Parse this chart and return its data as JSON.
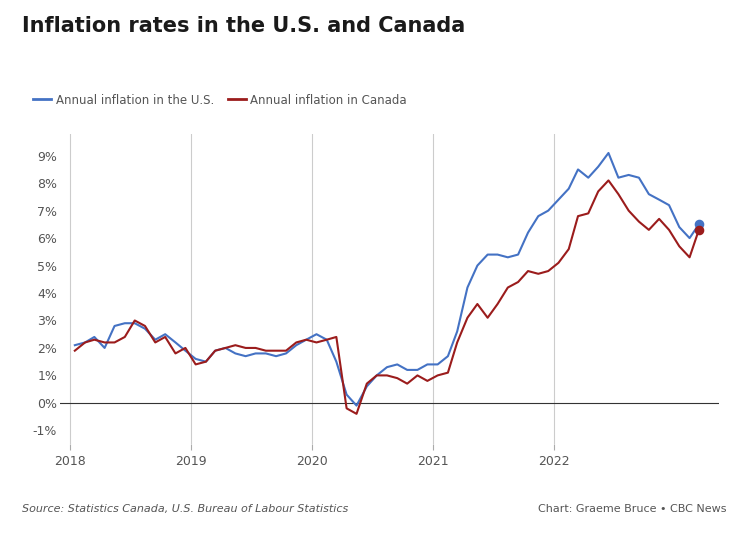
{
  "title": "Inflation rates in the U.S. and Canada",
  "legend_us": "Annual inflation in the U.S.",
  "legend_ca": "Annual inflation in Canada",
  "source_text": "Source: Statistics Canada, U.S. Bureau of Labour Statistics",
  "credit_text": "Chart: Graeme Bruce • CBC News",
  "color_us": "#4472C4",
  "color_ca": "#9B1C1C",
  "yticks": [
    -0.01,
    0.0,
    0.01,
    0.02,
    0.03,
    0.04,
    0.05,
    0.06,
    0.07,
    0.08,
    0.09
  ],
  "ytick_labels": [
    "-1%",
    "0%",
    "1%",
    "2%",
    "3%",
    "4%",
    "5%",
    "6%",
    "7%",
    "8%",
    "9%"
  ],
  "ylim": [
    -0.015,
    0.098
  ],
  "vline_years": [
    2018,
    2019,
    2020,
    2021,
    2022
  ],
  "us_data": [
    [
      2018,
      1
    ],
    [
      2018,
      2
    ],
    [
      2018,
      3
    ],
    [
      2018,
      4
    ],
    [
      2018,
      5
    ],
    [
      2018,
      6
    ],
    [
      2018,
      7
    ],
    [
      2018,
      8
    ],
    [
      2018,
      9
    ],
    [
      2018,
      10
    ],
    [
      2018,
      11
    ],
    [
      2018,
      12
    ],
    [
      2019,
      1
    ],
    [
      2019,
      2
    ],
    [
      2019,
      3
    ],
    [
      2019,
      4
    ],
    [
      2019,
      5
    ],
    [
      2019,
      6
    ],
    [
      2019,
      7
    ],
    [
      2019,
      8
    ],
    [
      2019,
      9
    ],
    [
      2019,
      10
    ],
    [
      2019,
      11
    ],
    [
      2019,
      12
    ],
    [
      2020,
      1
    ],
    [
      2020,
      2
    ],
    [
      2020,
      3
    ],
    [
      2020,
      4
    ],
    [
      2020,
      5
    ],
    [
      2020,
      6
    ],
    [
      2020,
      7
    ],
    [
      2020,
      8
    ],
    [
      2020,
      9
    ],
    [
      2020,
      10
    ],
    [
      2020,
      11
    ],
    [
      2020,
      12
    ],
    [
      2021,
      1
    ],
    [
      2021,
      2
    ],
    [
      2021,
      3
    ],
    [
      2021,
      4
    ],
    [
      2021,
      5
    ],
    [
      2021,
      6
    ],
    [
      2021,
      7
    ],
    [
      2021,
      8
    ],
    [
      2021,
      9
    ],
    [
      2021,
      10
    ],
    [
      2021,
      11
    ],
    [
      2021,
      12
    ],
    [
      2022,
      1
    ],
    [
      2022,
      2
    ],
    [
      2022,
      3
    ],
    [
      2022,
      4
    ],
    [
      2022,
      5
    ],
    [
      2022,
      6
    ],
    [
      2022,
      7
    ],
    [
      2022,
      8
    ],
    [
      2022,
      9
    ],
    [
      2022,
      10
    ],
    [
      2022,
      11
    ],
    [
      2022,
      12
    ],
    [
      2023,
      1
    ],
    [
      2023,
      2
    ],
    [
      2023,
      3
    ]
  ],
  "us_values": [
    0.021,
    0.022,
    0.024,
    0.02,
    0.028,
    0.029,
    0.029,
    0.027,
    0.023,
    0.025,
    0.022,
    0.019,
    0.016,
    0.015,
    0.019,
    0.02,
    0.018,
    0.017,
    0.018,
    0.018,
    0.017,
    0.018,
    0.021,
    0.023,
    0.025,
    0.023,
    0.015,
    0.003,
    -0.001,
    0.006,
    0.01,
    0.013,
    0.014,
    0.012,
    0.012,
    0.014,
    0.014,
    0.017,
    0.026,
    0.042,
    0.05,
    0.054,
    0.054,
    0.053,
    0.054,
    0.062,
    0.068,
    0.07,
    0.074,
    0.078,
    0.085,
    0.082,
    0.086,
    0.091,
    0.082,
    0.083,
    0.082,
    0.076,
    0.074,
    0.072,
    0.064,
    0.06,
    0.065
  ],
  "ca_data": [
    [
      2018,
      1
    ],
    [
      2018,
      2
    ],
    [
      2018,
      3
    ],
    [
      2018,
      4
    ],
    [
      2018,
      5
    ],
    [
      2018,
      6
    ],
    [
      2018,
      7
    ],
    [
      2018,
      8
    ],
    [
      2018,
      9
    ],
    [
      2018,
      10
    ],
    [
      2018,
      11
    ],
    [
      2018,
      12
    ],
    [
      2019,
      1
    ],
    [
      2019,
      2
    ],
    [
      2019,
      3
    ],
    [
      2019,
      4
    ],
    [
      2019,
      5
    ],
    [
      2019,
      6
    ],
    [
      2019,
      7
    ],
    [
      2019,
      8
    ],
    [
      2019,
      9
    ],
    [
      2019,
      10
    ],
    [
      2019,
      11
    ],
    [
      2019,
      12
    ],
    [
      2020,
      1
    ],
    [
      2020,
      2
    ],
    [
      2020,
      3
    ],
    [
      2020,
      4
    ],
    [
      2020,
      5
    ],
    [
      2020,
      6
    ],
    [
      2020,
      7
    ],
    [
      2020,
      8
    ],
    [
      2020,
      9
    ],
    [
      2020,
      10
    ],
    [
      2020,
      11
    ],
    [
      2020,
      12
    ],
    [
      2021,
      1
    ],
    [
      2021,
      2
    ],
    [
      2021,
      3
    ],
    [
      2021,
      4
    ],
    [
      2021,
      5
    ],
    [
      2021,
      6
    ],
    [
      2021,
      7
    ],
    [
      2021,
      8
    ],
    [
      2021,
      9
    ],
    [
      2021,
      10
    ],
    [
      2021,
      11
    ],
    [
      2021,
      12
    ],
    [
      2022,
      1
    ],
    [
      2022,
      2
    ],
    [
      2022,
      3
    ],
    [
      2022,
      4
    ],
    [
      2022,
      5
    ],
    [
      2022,
      6
    ],
    [
      2022,
      7
    ],
    [
      2022,
      8
    ],
    [
      2022,
      9
    ],
    [
      2022,
      10
    ],
    [
      2022,
      11
    ],
    [
      2022,
      12
    ],
    [
      2023,
      1
    ],
    [
      2023,
      2
    ],
    [
      2023,
      3
    ]
  ],
  "ca_values": [
    0.019,
    0.022,
    0.023,
    0.022,
    0.022,
    0.024,
    0.03,
    0.028,
    0.022,
    0.024,
    0.018,
    0.02,
    0.014,
    0.015,
    0.019,
    0.02,
    0.021,
    0.02,
    0.02,
    0.019,
    0.019,
    0.019,
    0.022,
    0.023,
    0.022,
    0.023,
    0.024,
    -0.002,
    -0.004,
    0.007,
    0.01,
    0.01,
    0.009,
    0.007,
    0.01,
    0.008,
    0.01,
    0.011,
    0.022,
    0.031,
    0.036,
    0.031,
    0.036,
    0.042,
    0.044,
    0.048,
    0.047,
    0.048,
    0.051,
    0.056,
    0.068,
    0.069,
    0.077,
    0.081,
    0.076,
    0.07,
    0.066,
    0.063,
    0.067,
    0.063,
    0.057,
    0.053,
    0.063
  ],
  "endpoint_us_value": 0.065,
  "endpoint_ca_value": 0.063,
  "endpoint_year": 2023,
  "endpoint_month": 3,
  "xlim_start": [
    2017,
    12,
    1
  ],
  "xlim_end": [
    2023,
    5,
    15
  ],
  "xtick_years": [
    2018,
    2019,
    2020,
    2021,
    2022
  ],
  "background_color": "#ffffff",
  "vline_color": "#cccccc",
  "zeroline_color": "#333333",
  "tick_color": "#aaaaaa",
  "label_color": "#555555",
  "title_color": "#1a1a1a",
  "title_fontsize": 15,
  "legend_fontsize": 8.5,
  "tick_fontsize": 9
}
